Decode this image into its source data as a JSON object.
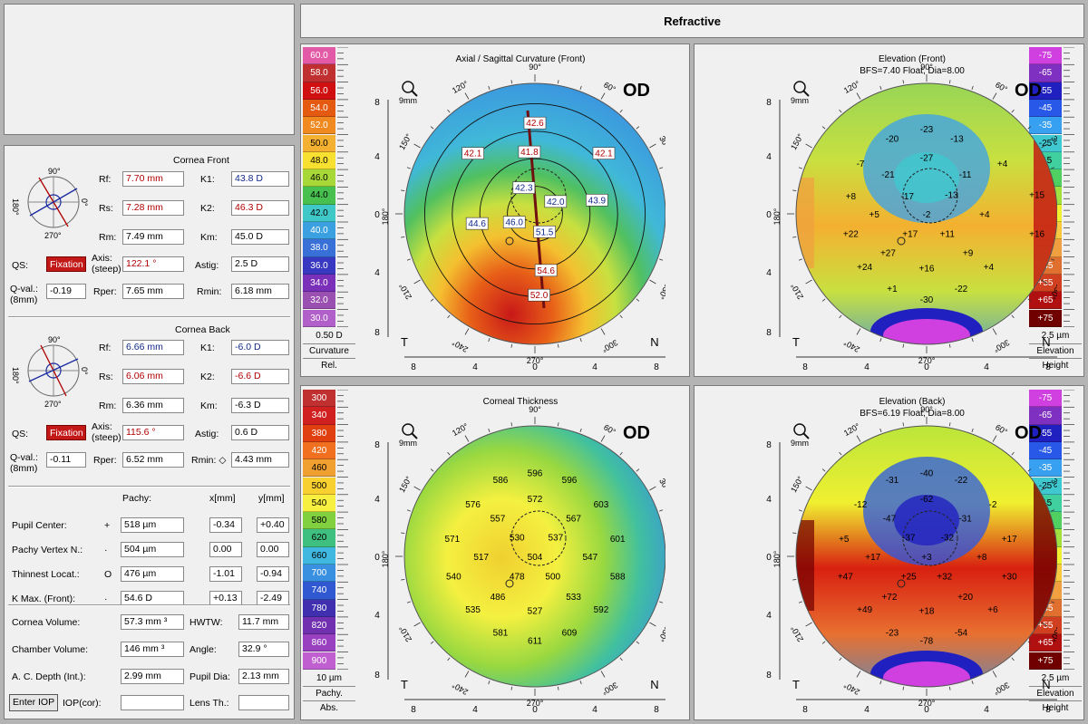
{
  "header": {
    "title": "Refractive"
  },
  "cornea_front": {
    "title": "Cornea Front",
    "rf": {
      "label": "Rf:",
      "value": "7.70 mm"
    },
    "rs": {
      "label": "Rs:",
      "value": "7.28 mm"
    },
    "rm": {
      "label": "Rm:",
      "value": "7.49 mm"
    },
    "k1": {
      "label": "K1:",
      "value": "43.8 D"
    },
    "k2": {
      "label": "K2:",
      "value": "46.3 D"
    },
    "km": {
      "label": "Km:",
      "value": "45.0 D"
    },
    "qs_label": "QS:",
    "qs_value": "Fixation",
    "axis_label1": "Axis:",
    "axis_label2": "(steep)",
    "axis_value": "122.1 °",
    "astig": {
      "label": "Astig:",
      "value": "2.5 D"
    },
    "qval_label1": "Q-val.:",
    "qval_label2": "(8mm)",
    "qval_value": "-0.19",
    "rper": {
      "label": "Rper:",
      "value": "7.65 mm"
    },
    "rmin": {
      "label": "Rmin:",
      "value": "6.18 mm"
    },
    "dial": {
      "top": "90°",
      "bottom": "270°",
      "left": "180°",
      "right": "0°"
    }
  },
  "cornea_back": {
    "title": "Cornea Back",
    "rf": {
      "label": "Rf:",
      "value": "6.66 mm"
    },
    "rs": {
      "label": "Rs:",
      "value": "6.06 mm"
    },
    "rm": {
      "label": "Rm:",
      "value": "6.36 mm"
    },
    "k1": {
      "label": "K1:",
      "value": "-6.0 D"
    },
    "k2": {
      "label": "K2:",
      "value": "-6.6 D"
    },
    "km": {
      "label": "Km:",
      "value": "-6.3 D"
    },
    "qs_label": "QS:",
    "qs_value": "Fixation",
    "axis_label1": "Axis:",
    "axis_label2": "(steep)",
    "axis_value": "115.6 °",
    "astig": {
      "label": "Astig:",
      "value": "0.6 D"
    },
    "qval_label1": "Q-val.:",
    "qval_label2": "(8mm)",
    "qval_value": "-0.11",
    "rper": {
      "label": "Rper:",
      "value": "6.52 mm"
    },
    "rmin": {
      "label": "Rmin: ◇",
      "value": "4.43 mm"
    },
    "dial": {
      "top": "90°",
      "bottom": "270°",
      "left": "180°",
      "right": "0°"
    }
  },
  "pachy": {
    "col_pachy": "Pachy:",
    "col_x": "x[mm]",
    "col_y": "y[mm]",
    "rows": [
      {
        "label": "Pupil Center:",
        "sym": "+",
        "pachy": "518 µm",
        "x": "-0.34",
        "y": "+0.40"
      },
      {
        "label": "Pachy Vertex N.:",
        "sym": "·",
        "pachy": "504 µm",
        "x": "0.00",
        "y": "0.00"
      },
      {
        "label": "Thinnest Locat.:",
        "sym": "O",
        "pachy": "476 µm",
        "x": "-1.01",
        "y": "-0.94"
      },
      {
        "label": "K Max. (Front):",
        "sym": "·",
        "pachy": "54.6 D",
        "x": "+0.13",
        "y": "-2.49"
      }
    ]
  },
  "volumes": {
    "cornea_volume": {
      "label": "Cornea Volume:",
      "value": "57.3 mm ³"
    },
    "hwtw": {
      "label": "HWTW:",
      "value": "11.7 mm"
    },
    "chamber_volume": {
      "label": "Chamber Volume:",
      "value": "146 mm ³"
    },
    "angle": {
      "label": "Angle:",
      "value": "32.9 °"
    },
    "ac_depth": {
      "label": "A. C. Depth (Int.):",
      "value": "2.99 mm"
    },
    "pupil_dia": {
      "label": "Pupil Dia:",
      "value": "2.13 mm"
    },
    "enter_iop": "Enter IOP",
    "iop_label": "IOP(cor):",
    "iop_value": "",
    "lens_label": "Lens Th.:",
    "lens_value": ""
  },
  "maps": {
    "axial": {
      "title": "Axial / Sagittal Curvature (Front)",
      "subtitle": "",
      "eye": "OD",
      "zoom": "9mm",
      "t": "T",
      "n": "N",
      "values": [
        {
          "text": "42.6",
          "x": 0,
          "y": 6.5
        },
        {
          "text": "41.8",
          "x": -0.4,
          "y": 4.4
        },
        {
          "text": "42.1",
          "x": -4.5,
          "y": 4.3
        },
        {
          "text": "42.1",
          "x": 5.0,
          "y": 4.3
        },
        {
          "text": "42.3",
          "x": -0.8,
          "y": 1.8
        },
        {
          "text": "42.0",
          "x": 1.5,
          "y": 0.8
        },
        {
          "text": "43.9",
          "x": 4.5,
          "y": 0.9
        },
        {
          "text": "44.6",
          "x": -4.2,
          "y": -0.8
        },
        {
          "text": "46.0",
          "x": -1.5,
          "y": -0.7
        },
        {
          "text": "51.5",
          "x": 0.7,
          "y": -1.4
        },
        {
          "text": "54.6",
          "x": 0.8,
          "y": -4.2
        },
        {
          "text": "52.0",
          "x": 0.3,
          "y": -6.0
        }
      ]
    },
    "elev_front": {
      "title": "Elevation (Front)",
      "subtitle": "BFS=7.40 Float, Dia=8.00",
      "eye": "OD",
      "zoom": "9mm",
      "t": "T",
      "n": "N",
      "values": [
        {
          "text": "-23",
          "x": 0,
          "y": 6.2
        },
        {
          "text": "-20",
          "x": -2.5,
          "y": 5.5
        },
        {
          "text": "-13",
          "x": 2.2,
          "y": 5.5
        },
        {
          "text": "-27",
          "x": 0,
          "y": 4.1
        },
        {
          "text": "-7",
          "x": -4.8,
          "y": 3.7
        },
        {
          "text": "-21",
          "x": -2.8,
          "y": 2.9
        },
        {
          "text": "-11",
          "x": 2.8,
          "y": 2.9
        },
        {
          "text": "+4",
          "x": 5.5,
          "y": 3.7
        },
        {
          "text": "+8",
          "x": -5.5,
          "y": 1.3
        },
        {
          "text": "-17",
          "x": -1.4,
          "y": 1.3
        },
        {
          "text": "-2",
          "x": 0,
          "y": 0
        },
        {
          "text": "-13",
          "x": 1.8,
          "y": 1.4
        },
        {
          "text": "+15",
          "x": 8.0,
          "y": 1.4
        },
        {
          "text": "+5",
          "x": -3.8,
          "y": 0
        },
        {
          "text": "+4",
          "x": 4.2,
          "y": 0
        },
        {
          "text": "+22",
          "x": -5.5,
          "y": -1.4
        },
        {
          "text": "+17",
          "x": -1.2,
          "y": -1.4
        },
        {
          "text": "+11",
          "x": 1.5,
          "y": -1.4
        },
        {
          "text": "+16",
          "x": 8.0,
          "y": -1.4
        },
        {
          "text": "+27",
          "x": -2.8,
          "y": -2.8
        },
        {
          "text": "+9",
          "x": 3.0,
          "y": -2.8
        },
        {
          "text": "+24",
          "x": -4.5,
          "y": -3.8
        },
        {
          "text": "+16",
          "x": 0,
          "y": -3.9
        },
        {
          "text": "+4",
          "x": 4.5,
          "y": -3.8
        },
        {
          "text": "+1",
          "x": -2.5,
          "y": -5.4
        },
        {
          "text": "-22",
          "x": 2.5,
          "y": -5.4
        },
        {
          "text": "-30",
          "x": 0,
          "y": -6.2
        }
      ]
    },
    "pachy": {
      "title": "Corneal Thickness",
      "subtitle": "",
      "eye": "OD",
      "zoom": "9mm",
      "t": "T",
      "n": "N",
      "values": [
        {
          "text": "586",
          "x": -2.5,
          "y": 5.6
        },
        {
          "text": "596",
          "x": 0,
          "y": 6.1
        },
        {
          "text": "596",
          "x": 2.5,
          "y": 5.6
        },
        {
          "text": "576",
          "x": -4.5,
          "y": 3.8
        },
        {
          "text": "572",
          "x": 0,
          "y": 4.2
        },
        {
          "text": "603",
          "x": 4.8,
          "y": 3.8
        },
        {
          "text": "557",
          "x": -2.7,
          "y": 2.8
        },
        {
          "text": "567",
          "x": 2.8,
          "y": 2.8
        },
        {
          "text": "571",
          "x": -6.0,
          "y": 1.3
        },
        {
          "text": "530",
          "x": -1.3,
          "y": 1.4
        },
        {
          "text": "537",
          "x": 1.5,
          "y": 1.4
        },
        {
          "text": "601",
          "x": 6.0,
          "y": 1.3
        },
        {
          "text": "517",
          "x": -3.9,
          "y": 0
        },
        {
          "text": "504",
          "x": 0,
          "y": 0
        },
        {
          "text": "547",
          "x": 4.0,
          "y": 0
        },
        {
          "text": "540",
          "x": -5.9,
          "y": -1.4
        },
        {
          "text": "478",
          "x": -1.3,
          "y": -1.4
        },
        {
          "text": "500",
          "x": 1.3,
          "y": -1.4
        },
        {
          "text": "588",
          "x": 6.0,
          "y": -1.4
        },
        {
          "text": "486",
          "x": -2.7,
          "y": -2.9
        },
        {
          "text": "533",
          "x": 2.8,
          "y": -2.9
        },
        {
          "text": "535",
          "x": -4.5,
          "y": -3.8
        },
        {
          "text": "527",
          "x": 0,
          "y": -3.9
        },
        {
          "text": "592",
          "x": 4.8,
          "y": -3.8
        },
        {
          "text": "581",
          "x": -2.5,
          "y": -5.5
        },
        {
          "text": "611",
          "x": 0,
          "y": -6.1
        },
        {
          "text": "609",
          "x": 2.5,
          "y": -5.5
        }
      ]
    },
    "elev_back": {
      "title": "Elevation (Back)",
      "subtitle": "BFS=6.19 Float, Dia=8.00",
      "eye": "OD",
      "zoom": "9mm",
      "t": "T",
      "n": "N",
      "values": [
        {
          "text": "-31",
          "x": -2.5,
          "y": 5.6
        },
        {
          "text": "-40",
          "x": 0,
          "y": 6.1
        },
        {
          "text": "-22",
          "x": 2.5,
          "y": 5.6
        },
        {
          "text": "-12",
          "x": -4.8,
          "y": 3.8
        },
        {
          "text": "-62",
          "x": 0,
          "y": 4.2
        },
        {
          "text": "-2",
          "x": 4.8,
          "y": 3.8
        },
        {
          "text": "-47",
          "x": -2.7,
          "y": 2.8
        },
        {
          "text": "-31",
          "x": 2.8,
          "y": 2.8
        },
        {
          "text": "+5",
          "x": -6.0,
          "y": 1.3
        },
        {
          "text": "-37",
          "x": -1.3,
          "y": 1.4
        },
        {
          "text": "-32",
          "x": 1.5,
          "y": 1.4
        },
        {
          "text": "+17",
          "x": 6.0,
          "y": 1.3
        },
        {
          "text": "+17",
          "x": -3.9,
          "y": 0
        },
        {
          "text": "+3",
          "x": 0,
          "y": 0
        },
        {
          "text": "+8",
          "x": 4.0,
          "y": 0
        },
        {
          "text": "+47",
          "x": -5.9,
          "y": -1.4
        },
        {
          "text": "+25",
          "x": -1.3,
          "y": -1.4
        },
        {
          "text": "+32",
          "x": 1.3,
          "y": -1.4
        },
        {
          "text": "+30",
          "x": 6.0,
          "y": -1.4
        },
        {
          "text": "+72",
          "x": -2.7,
          "y": -2.9
        },
        {
          "text": "+20",
          "x": 2.8,
          "y": -2.9
        },
        {
          "text": "+49",
          "x": -4.5,
          "y": -3.8
        },
        {
          "text": "+18",
          "x": 0,
          "y": -3.9
        },
        {
          "text": "+6",
          "x": 4.8,
          "y": -3.8
        },
        {
          "text": "-23",
          "x": -2.5,
          "y": -5.5
        },
        {
          "text": "-78",
          "x": 0,
          "y": -6.1
        },
        {
          "text": "-54",
          "x": 2.5,
          "y": -5.5
        }
      ]
    }
  },
  "map_axes": {
    "ticks": [
      "8",
      "4",
      "0",
      "4",
      "8"
    ],
    "angles": [
      "90°",
      "120°",
      "150°",
      "180°",
      "210°",
      "240°",
      "270°",
      "300°",
      "330°",
      "0°",
      "30°",
      "60°"
    ]
  },
  "scales": {
    "curvature": {
      "values": [
        "60.0",
        "58.0",
        "56.0",
        "54.0",
        "52.0",
        "50.0",
        "48.0",
        "46.0",
        "44.0",
        "42.0",
        "40.0",
        "38.0",
        "36.0",
        "34.0",
        "32.0",
        "30.0"
      ],
      "colors": [
        "#e25aa6",
        "#c03030",
        "#d01010",
        "#e45a10",
        "#f08a20",
        "#f4b030",
        "#f8e030",
        "#a8d838",
        "#48c050",
        "#40c8c8",
        "#3aa0e0",
        "#3870d8",
        "#3838c0",
        "#7a30b8",
        "#9a50b0",
        "#b060c8"
      ],
      "step": "0.50 D",
      "foot1": "Curvature",
      "foot2": "Rel."
    },
    "height_front": {
      "values": [
        "-75",
        "-65",
        "-55",
        "-45",
        "-35",
        "-25",
        "-15",
        "-5",
        "+5",
        "+15",
        "+25",
        "+35",
        "+45",
        "+55",
        "+65",
        "+75"
      ],
      "colors": [
        "#d040e0",
        "#8030c0",
        "#2020c0",
        "#2858e8",
        "#38a0f0",
        "#40c8d0",
        "#40d0a0",
        "#50d060",
        "#a0e040",
        "#f0f030",
        "#f8c840",
        "#f0a040",
        "#e07030",
        "#d04020",
        "#b01010",
        "#700000"
      ],
      "step": "2.5 µm",
      "foot1": "Elevation",
      "foot2": "Height"
    },
    "pachy": {
      "values": [
        "300",
        "340",
        "380",
        "420",
        "460",
        "500",
        "540",
        "580",
        "620",
        "660",
        "700",
        "740",
        "780",
        "820",
        "860",
        "900"
      ],
      "colors": [
        "#c03030",
        "#d02020",
        "#e04010",
        "#f07020",
        "#f0a030",
        "#f8d030",
        "#f8f040",
        "#80d040",
        "#40c080",
        "#40b8e0",
        "#3a90e0",
        "#3058d0",
        "#4030b0",
        "#7030b0",
        "#9840c0",
        "#c060d0"
      ],
      "step": "10 µm",
      "foot1": "Pachy.",
      "foot2": "Abs."
    },
    "height_back": {
      "values": [
        "-75",
        "-65",
        "-55",
        "-45",
        "-35",
        "-25",
        "-15",
        "-5",
        "+5",
        "+15",
        "+25",
        "+35",
        "+45",
        "+55",
        "+65",
        "+75"
      ],
      "colors": [
        "#d040e0",
        "#8030c0",
        "#2020c0",
        "#2858e8",
        "#38a0f0",
        "#40c8d0",
        "#40d0a0",
        "#50d060",
        "#a0e040",
        "#f0f030",
        "#f8c840",
        "#f0a040",
        "#e07030",
        "#d04020",
        "#b01010",
        "#700000"
      ],
      "step": "2.5 µm",
      "foot1": "Elevation",
      "foot2": "Height"
    }
  }
}
